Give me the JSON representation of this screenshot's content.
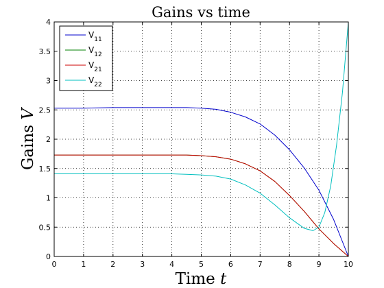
{
  "chart_data": {
    "type": "line",
    "title": "Gains vs time",
    "xlabel": "Time t",
    "ylabel": "Gains V",
    "xlim": [
      0,
      10
    ],
    "ylim": [
      0,
      4
    ],
    "xticks": [
      "0",
      "1",
      "2",
      "3",
      "4",
      "5",
      "6",
      "7",
      "8",
      "9",
      "10"
    ],
    "yticks": [
      "0",
      "0.5",
      "1",
      "1.5",
      "2",
      "2.5",
      "3",
      "3.5",
      "4"
    ],
    "grid": true,
    "legend_position": "top-left",
    "series": [
      {
        "name": "V11",
        "base": "V",
        "sub": "11",
        "color": "#0000cc",
        "points": [
          [
            0,
            2.53
          ],
          [
            1,
            2.53
          ],
          [
            2,
            2.54
          ],
          [
            3,
            2.54
          ],
          [
            4,
            2.54
          ],
          [
            4.5,
            2.54
          ],
          [
            5,
            2.53
          ],
          [
            5.5,
            2.51
          ],
          [
            6,
            2.46
          ],
          [
            6.5,
            2.38
          ],
          [
            7,
            2.26
          ],
          [
            7.5,
            2.07
          ],
          [
            8,
            1.82
          ],
          [
            8.5,
            1.51
          ],
          [
            9,
            1.13
          ],
          [
            9.5,
            0.63
          ],
          [
            10,
            0.0
          ]
        ]
      },
      {
        "name": "V12",
        "base": "V",
        "sub": "12",
        "color": "#008000",
        "points": [
          [
            0,
            1.73
          ],
          [
            1,
            1.73
          ],
          [
            2,
            1.73
          ],
          [
            3,
            1.73
          ],
          [
            4,
            1.73
          ],
          [
            4.5,
            1.73
          ],
          [
            5,
            1.72
          ],
          [
            5.5,
            1.7
          ],
          [
            6,
            1.66
          ],
          [
            6.5,
            1.58
          ],
          [
            7,
            1.46
          ],
          [
            7.5,
            1.28
          ],
          [
            8,
            1.04
          ],
          [
            8.5,
            0.77
          ],
          [
            9,
            0.47
          ],
          [
            9.5,
            0.22
          ],
          [
            10,
            0.0
          ]
        ]
      },
      {
        "name": "V21",
        "base": "V",
        "sub": "21",
        "color": "#cc0000",
        "points": [
          [
            0,
            1.73
          ],
          [
            1,
            1.73
          ],
          [
            2,
            1.73
          ],
          [
            3,
            1.73
          ],
          [
            4,
            1.73
          ],
          [
            4.5,
            1.73
          ],
          [
            5,
            1.72
          ],
          [
            5.5,
            1.7
          ],
          [
            6,
            1.66
          ],
          [
            6.5,
            1.58
          ],
          [
            7,
            1.46
          ],
          [
            7.5,
            1.28
          ],
          [
            8,
            1.04
          ],
          [
            8.5,
            0.77
          ],
          [
            9,
            0.47
          ],
          [
            9.5,
            0.22
          ],
          [
            10,
            0.0
          ]
        ]
      },
      {
        "name": "V22",
        "base": "V",
        "sub": "22",
        "color": "#00bfbf",
        "points": [
          [
            0,
            1.41
          ],
          [
            1,
            1.41
          ],
          [
            2,
            1.41
          ],
          [
            3,
            1.41
          ],
          [
            4,
            1.41
          ],
          [
            4.5,
            1.4
          ],
          [
            5,
            1.39
          ],
          [
            5.5,
            1.37
          ],
          [
            6,
            1.32
          ],
          [
            6.5,
            1.22
          ],
          [
            7,
            1.08
          ],
          [
            7.5,
            0.88
          ],
          [
            8,
            0.66
          ],
          [
            8.5,
            0.48
          ],
          [
            8.8,
            0.44
          ],
          [
            9.0,
            0.5
          ],
          [
            9.2,
            0.75
          ],
          [
            9.4,
            1.2
          ],
          [
            9.6,
            1.9
          ],
          [
            9.8,
            2.8
          ],
          [
            10,
            4.0
          ]
        ]
      }
    ]
  }
}
